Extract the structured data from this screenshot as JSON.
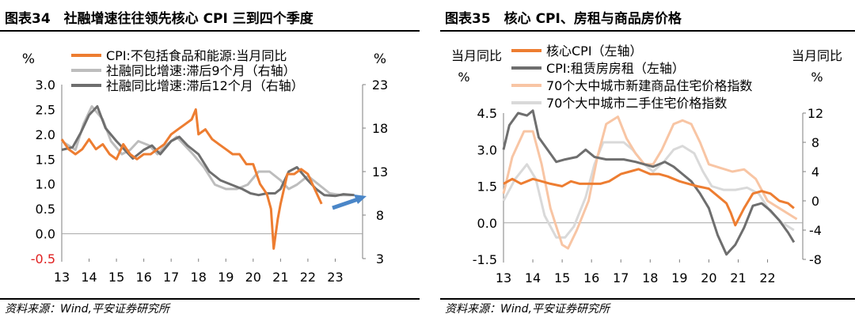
{
  "chart_data": [
    {
      "type": "line",
      "title": "图表34　社融增速往往领先核心 CPI 三到四个季度",
      "source": "资料来源：Wind,平安证券研究所",
      "ylabel_left": "%",
      "ylabel_right": "%",
      "ylim_left": [
        -0.5,
        3.0
      ],
      "ylim_right": [
        3,
        23
      ],
      "xlim": [
        13,
        24
      ],
      "grid": false,
      "legend_position": "top-left",
      "xticks": [
        "13",
        "14",
        "15",
        "16",
        "17",
        "18",
        "19",
        "20",
        "21",
        "22",
        "23"
      ],
      "yticks_left": [
        "-0.5",
        "0.0",
        "0.5",
        "1.0",
        "1.5",
        "2.0",
        "2.5",
        "3.0"
      ],
      "yticks_right": [
        "3",
        "8",
        "13",
        "18",
        "23"
      ],
      "annotation": "arrow-right",
      "series": [
        {
          "name": "CPI:不包括食品和能源:当月同比",
          "axis": "left",
          "color": "#ED7D31",
          "x": [
            13.0,
            13.25,
            13.5,
            13.75,
            14.0,
            14.25,
            14.5,
            14.75,
            15.0,
            15.25,
            15.5,
            15.75,
            16.0,
            16.25,
            16.5,
            16.75,
            17.0,
            17.25,
            17.5,
            17.75,
            17.9,
            18.0,
            18.25,
            18.5,
            18.75,
            19.0,
            19.25,
            19.5,
            19.75,
            20.0,
            20.25,
            20.5,
            20.65,
            20.75,
            20.9,
            21.0,
            21.25,
            21.5,
            21.75,
            22.0,
            22.25,
            22.5
          ],
          "y": [
            1.9,
            1.7,
            1.6,
            1.7,
            1.9,
            1.7,
            1.8,
            1.6,
            1.5,
            1.8,
            1.6,
            1.5,
            1.6,
            1.6,
            1.7,
            1.8,
            2.0,
            2.1,
            2.2,
            2.3,
            2.5,
            2.0,
            2.1,
            1.9,
            1.8,
            1.7,
            1.6,
            1.6,
            1.4,
            1.4,
            1.0,
            0.8,
            0.5,
            -0.3,
            0.3,
            0.6,
            1.2,
            1.2,
            1.3,
            1.2,
            0.9,
            0.6
          ]
        },
        {
          "name": "社融同比增速:滞后9个月（右轴）",
          "axis": "right",
          "color": "#BDBDBD",
          "x": [
            13.0,
            13.5,
            13.8,
            14.1,
            14.5,
            14.8,
            15.2,
            15.5,
            15.8,
            16.2,
            16.5,
            16.8,
            17.2,
            17.5,
            17.8,
            18.2,
            18.6,
            19.0,
            19.4,
            19.8,
            20.2,
            20.6,
            21.0,
            21.3,
            21.6,
            22.0,
            22.4,
            22.8,
            23.2,
            23.6
          ],
          "y": [
            16.5,
            15.5,
            18.5,
            20.5,
            19.0,
            16.5,
            15.0,
            15.5,
            16.5,
            16.0,
            15.0,
            16.0,
            17.0,
            16.0,
            15.0,
            13.5,
            11.5,
            11.0,
            11.0,
            11.5,
            13.0,
            13.0,
            12.0,
            11.0,
            11.5,
            12.5,
            11.5,
            10.5,
            10.3,
            10.3
          ]
        },
        {
          "name": "社融同比增速:滞后12个月（右轴）",
          "axis": "right",
          "color": "#6E6E6E",
          "x": [
            13.0,
            13.4,
            13.7,
            14.0,
            14.3,
            14.6,
            15.0,
            15.3,
            15.6,
            16.0,
            16.3,
            16.6,
            17.0,
            17.3,
            17.6,
            18.0,
            18.4,
            18.8,
            19.2,
            19.6,
            19.9,
            20.2,
            20.5,
            20.8,
            21.0,
            21.3,
            21.6,
            22.0,
            22.3,
            22.6,
            23.0,
            23.3,
            23.7
          ],
          "y": [
            15.5,
            15.8,
            17.5,
            19.5,
            20.5,
            18.0,
            16.5,
            15.5,
            14.5,
            15.5,
            16.0,
            15.0,
            16.5,
            17.0,
            16.0,
            15.0,
            13.0,
            12.0,
            11.5,
            11.0,
            10.5,
            10.3,
            10.5,
            10.5,
            11.0,
            13.0,
            13.5,
            12.0,
            11.0,
            10.3,
            10.2,
            10.4,
            10.3
          ]
        }
      ]
    },
    {
      "type": "line",
      "title": "图表35　核心 CPI、房租与商品房价格",
      "source": "资料来源：Wind,平安证券研究所",
      "ylabel_left": "当月同比,%",
      "ylabel_right": "当月同比,%",
      "ylim_left": [
        -1.5,
        4.5
      ],
      "ylim_right": [
        -8,
        12
      ],
      "xlim": [
        13,
        23.2
      ],
      "grid": false,
      "legend_position": "top",
      "xticks": [
        "13",
        "14",
        "15",
        "16",
        "17",
        "18",
        "19",
        "20",
        "21",
        "22"
      ],
      "yticks_left": [
        "-1.5",
        "0.0",
        "1.5",
        "3.0",
        "4.5"
      ],
      "yticks_right": [
        "-8",
        "-4",
        "0",
        "4",
        "8",
        "12"
      ],
      "series": [
        {
          "name": "核心CPI（左轴）",
          "axis": "left",
          "color": "#ED7D31",
          "x": [
            13.0,
            13.3,
            13.6,
            14.0,
            14.3,
            14.6,
            15.0,
            15.3,
            15.6,
            16.0,
            16.3,
            16.6,
            17.0,
            17.3,
            17.6,
            18.0,
            18.3,
            18.6,
            19.0,
            19.3,
            19.6,
            20.0,
            20.3,
            20.6,
            20.75,
            20.9,
            21.2,
            21.5,
            21.8,
            22.1,
            22.4,
            22.7,
            22.9
          ],
          "y": [
            1.6,
            1.8,
            1.6,
            1.8,
            1.7,
            1.6,
            1.5,
            1.7,
            1.6,
            1.6,
            1.6,
            1.7,
            2.0,
            2.1,
            2.2,
            2.0,
            2.0,
            1.9,
            1.7,
            1.6,
            1.5,
            1.4,
            1.1,
            0.8,
            0.4,
            -0.1,
            0.6,
            1.2,
            1.3,
            1.2,
            0.9,
            0.8,
            0.6
          ]
        },
        {
          "name": "CPI:租赁房房租（左轴）",
          "axis": "left",
          "color": "#6E6E6E",
          "x": [
            13.0,
            13.2,
            13.5,
            13.8,
            14.0,
            14.2,
            14.5,
            14.8,
            15.1,
            15.5,
            15.8,
            16.1,
            16.5,
            16.8,
            17.1,
            17.5,
            17.8,
            18.1,
            18.5,
            18.8,
            19.1,
            19.4,
            19.7,
            20.0,
            20.3,
            20.6,
            20.9,
            21.2,
            21.5,
            21.8,
            22.1,
            22.4,
            22.7,
            22.9
          ],
          "y": [
            3.0,
            4.0,
            4.5,
            4.4,
            4.6,
            3.5,
            3.0,
            2.5,
            2.6,
            2.7,
            3.0,
            2.7,
            2.6,
            2.6,
            2.6,
            2.5,
            2.4,
            2.3,
            2.5,
            2.3,
            2.0,
            1.7,
            1.2,
            0.6,
            -0.5,
            -1.3,
            -0.9,
            -0.2,
            0.7,
            0.8,
            0.5,
            0.1,
            -0.4,
            -0.8
          ]
        },
        {
          "name": "70个大中城市新建商品住宅价格指数",
          "axis": "right",
          "color": "#F8C5A4",
          "x": [
            13.0,
            13.3,
            13.7,
            14.0,
            14.3,
            14.6,
            15.0,
            15.2,
            15.5,
            15.9,
            16.2,
            16.5,
            16.9,
            17.2,
            17.5,
            17.8,
            18.1,
            18.4,
            18.8,
            19.1,
            19.4,
            19.7,
            20.0,
            20.4,
            20.8,
            21.2,
            21.6,
            22.0,
            22.4,
            22.8,
            23.0
          ],
          "y": [
            1.0,
            6.0,
            9.5,
            9.5,
            5.0,
            -1.0,
            -6.0,
            -6.5,
            -4.0,
            0.0,
            6.0,
            10.5,
            11.5,
            8.5,
            6.5,
            5.0,
            5.0,
            7.0,
            10.5,
            11.0,
            10.5,
            8.0,
            5.0,
            4.5,
            4.0,
            4.3,
            3.0,
            0.0,
            -1.0,
            -2.0,
            -2.5
          ]
        },
        {
          "name": "70个大中城市二手住宅价格指数",
          "axis": "right",
          "color": "#D9D9D9",
          "x": [
            13.0,
            13.4,
            13.8,
            14.1,
            14.4,
            14.8,
            15.1,
            15.4,
            15.8,
            16.1,
            16.4,
            16.8,
            17.1,
            17.4,
            17.8,
            18.1,
            18.5,
            18.8,
            19.1,
            19.5,
            19.8,
            20.1,
            20.5,
            20.9,
            21.3,
            21.7,
            22.1,
            22.5,
            22.9
          ],
          "y": [
            0.0,
            3.0,
            5.0,
            3.0,
            -2.0,
            -5.0,
            -5.0,
            -3.5,
            0.5,
            5.0,
            8.0,
            8.0,
            8.0,
            7.0,
            5.0,
            4.0,
            5.5,
            7.0,
            7.5,
            6.5,
            4.0,
            2.0,
            1.5,
            1.5,
            1.8,
            1.0,
            -1.5,
            -3.0,
            -4.0
          ]
        }
      ]
    }
  ]
}
